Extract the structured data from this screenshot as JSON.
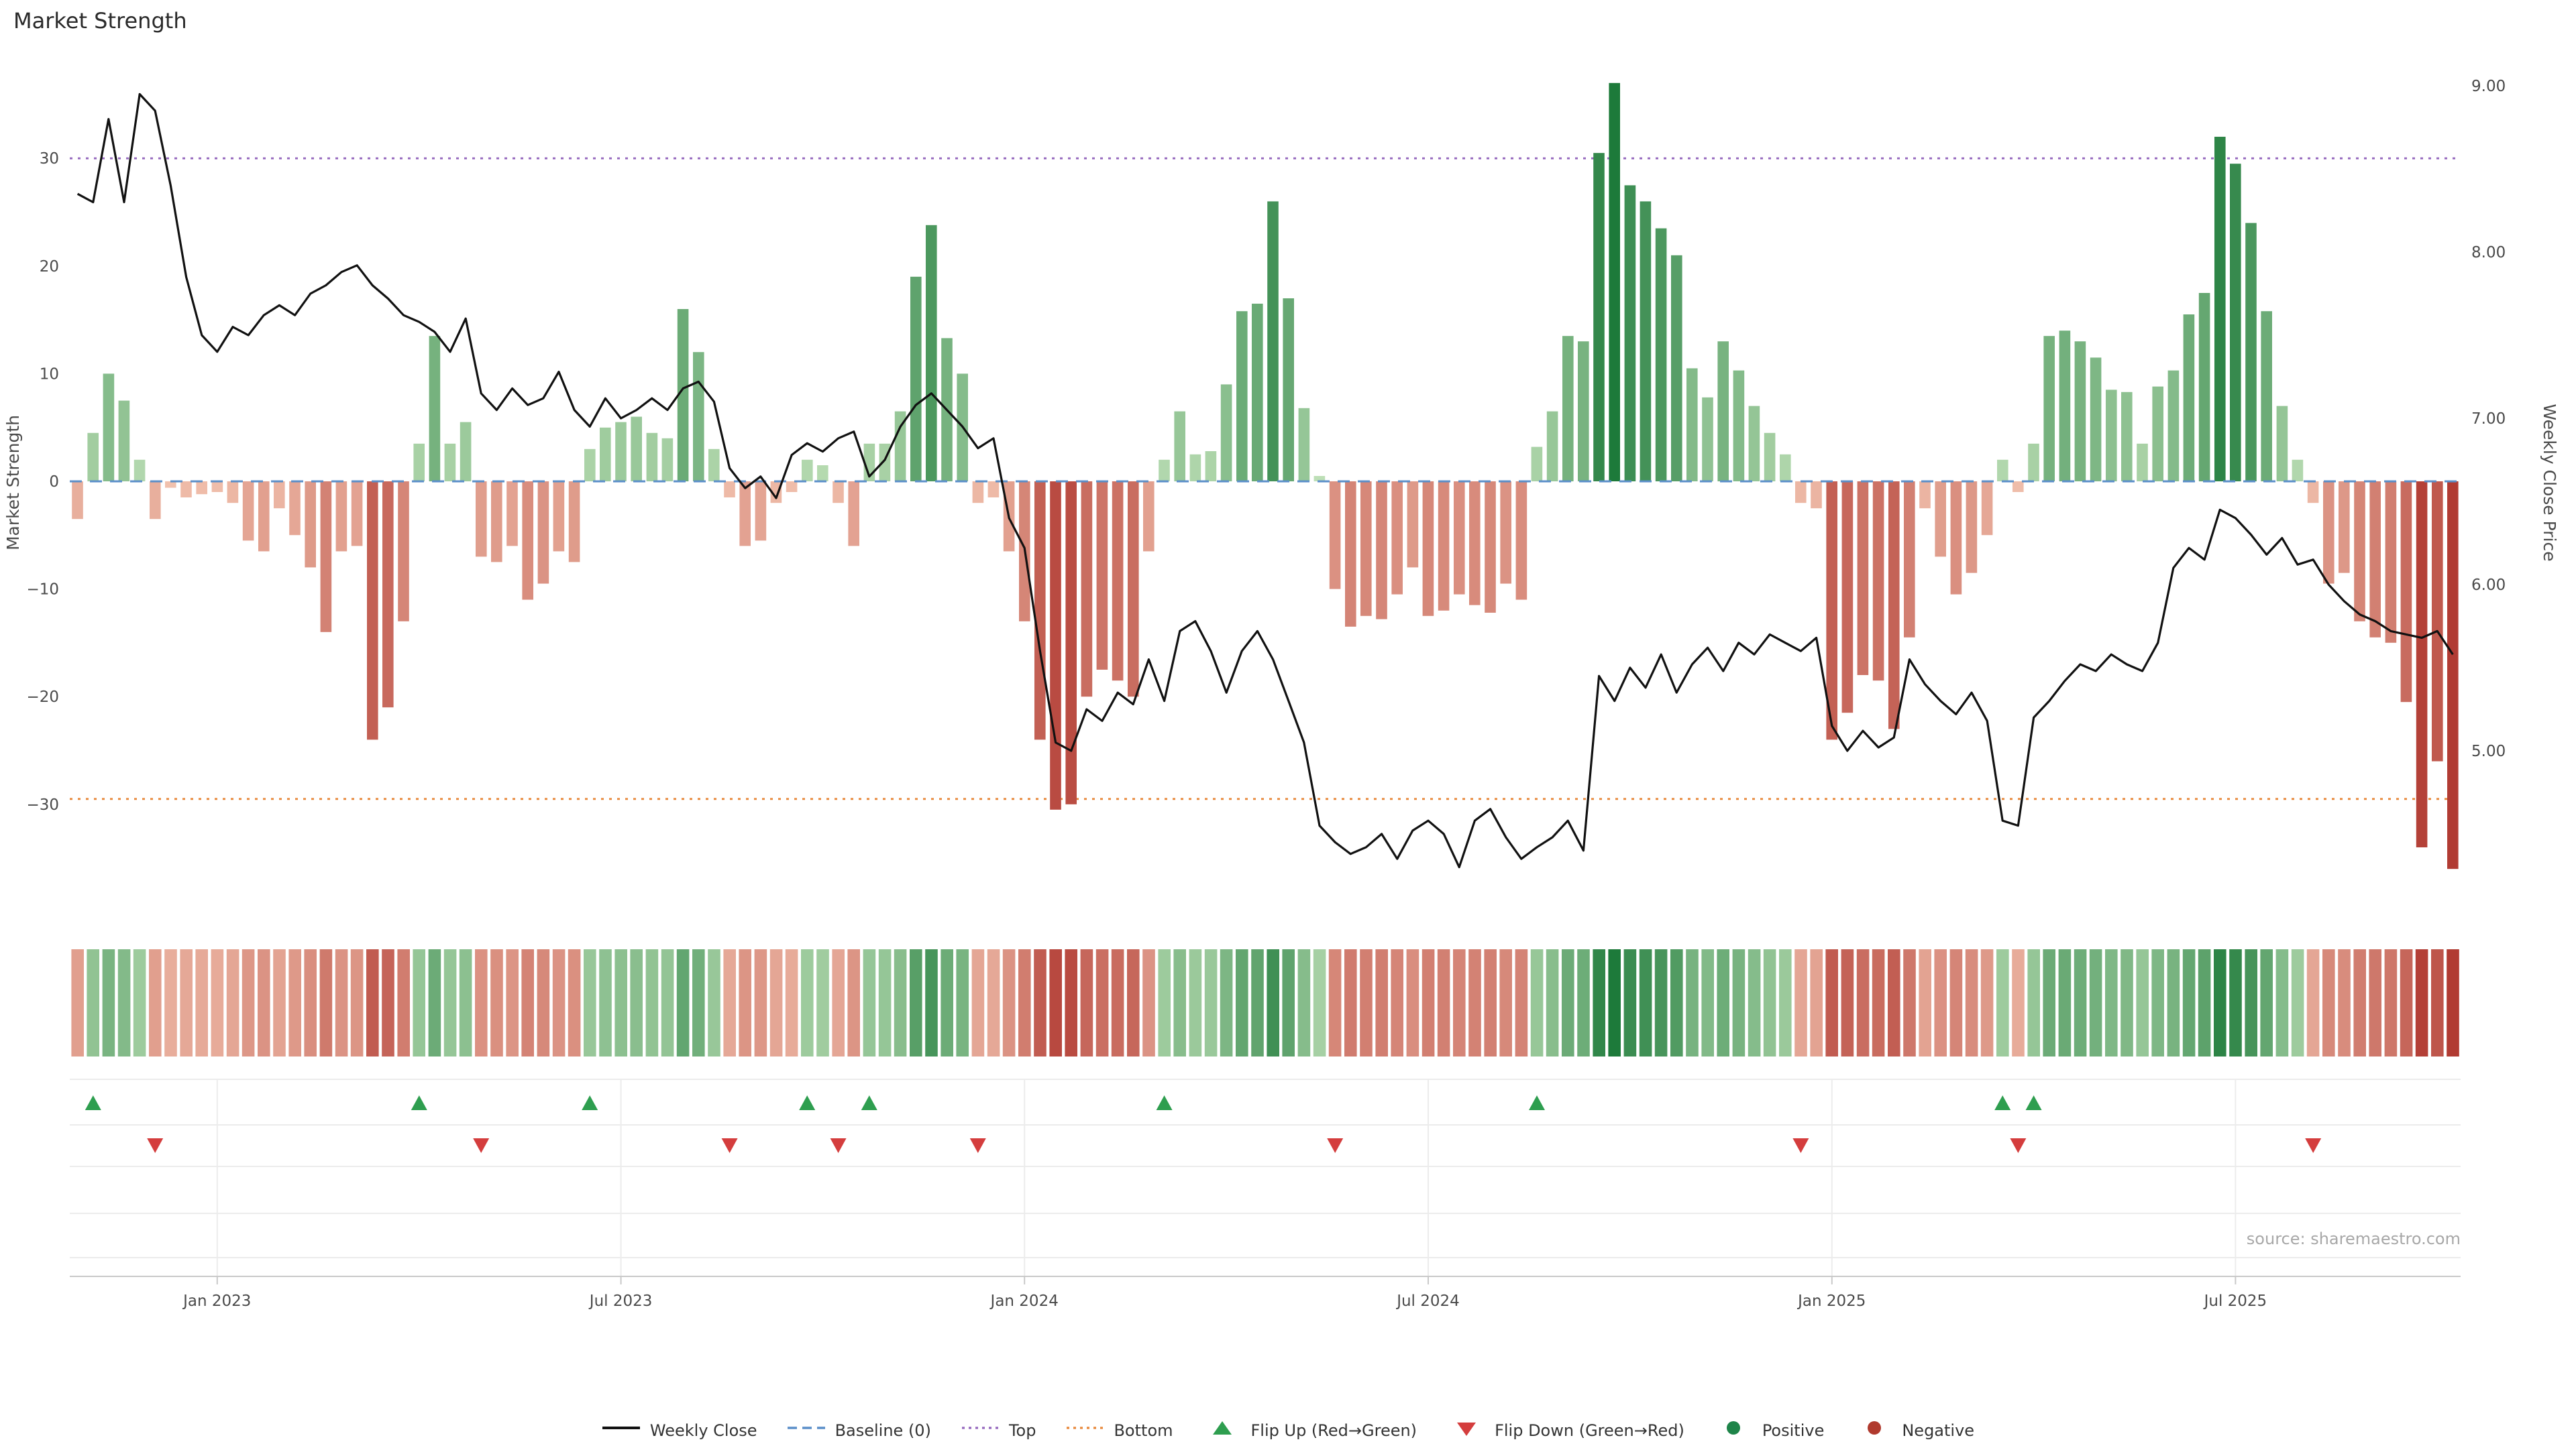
{
  "title": "Market Strength",
  "source": "source: sharemaestro.com",
  "legend": {
    "items": [
      {
        "name": "weekly-close",
        "label": "Weekly Close",
        "symbol": "line",
        "color": "#111111"
      },
      {
        "name": "baseline",
        "label": "Baseline (0)",
        "symbol": "dashed",
        "color": "#5b8fc9"
      },
      {
        "name": "top",
        "label": "Top",
        "symbol": "dotted",
        "color": "#9467bd"
      },
      {
        "name": "bottom",
        "label": "Bottom",
        "symbol": "dotted",
        "color": "#e8883a"
      },
      {
        "name": "flip-up",
        "label": "Flip Up (Red→Green)",
        "symbol": "triangle-up",
        "color": "#2e9e4f"
      },
      {
        "name": "flip-down",
        "label": "Flip Down (Green→Red)",
        "symbol": "triangle-down",
        "color": "#d43d3d"
      },
      {
        "name": "positive",
        "label": "Positive",
        "symbol": "circle",
        "color": "#1e8449"
      },
      {
        "name": "negative",
        "label": "Negative",
        "symbol": "circle",
        "color": "#b03a2e"
      }
    ]
  },
  "colors": {
    "pos_light": "#c4e3bb",
    "pos_dark": "#1d7a3a",
    "neg_light": "#f4c7b3",
    "neg_dark": "#b03830",
    "line": "#111111",
    "baseline": "#5b8fc9",
    "top": "#9467bd",
    "bottom": "#e8883a",
    "flip_up": "#2e9e4f",
    "flip_down": "#d43d3d",
    "grid": "#ececec",
    "axis_line": "#c9c9c9",
    "axis_text": "#4a4a4a",
    "source_text": "#a8a8a8"
  },
  "chart_data": {
    "type": "combo",
    "subtypes": [
      "bar",
      "line",
      "heatmap"
    ],
    "x_unit": "week",
    "n_points": 154,
    "left_axis": {
      "label": "Market Strength",
      "ticks": [
        30,
        20,
        10,
        0,
        -10,
        -20,
        -30
      ],
      "tick_labels": [
        "30",
        "20",
        "10",
        "0",
        "−10",
        "−20",
        "−30"
      ],
      "range": [
        -38,
        40
      ]
    },
    "right_axis": {
      "label": "Weekly Close Price",
      "ticks": [
        9,
        8,
        7,
        6,
        5
      ],
      "tick_labels": [
        "9.00",
        "8.00",
        "7.00",
        "6.00",
        "5.00"
      ],
      "range": [
        4.1,
        9.1
      ]
    },
    "x_ticks": [
      {
        "label": "Jan 2023",
        "week": 9
      },
      {
        "label": "Jul 2023",
        "week": 35
      },
      {
        "label": "Jan 2024",
        "week": 61
      },
      {
        "label": "Jul 2024",
        "week": 87
      },
      {
        "label": "Jan 2025",
        "week": 113
      },
      {
        "label": "Jul 2025",
        "week": 139
      }
    ],
    "reference_lines": {
      "baseline": 0,
      "top": 30,
      "bottom": -29.5
    },
    "series": [
      {
        "name": "Market Strength",
        "type": "bar",
        "axis": "left",
        "values": [
          -3.5,
          4.5,
          10,
          7.5,
          2,
          -3.5,
          -0.6,
          -1.5,
          -1.2,
          -1,
          -2,
          -5.5,
          -6.5,
          -2.5,
          -5,
          -8,
          -14,
          -6.5,
          -6,
          -24,
          -21,
          -13,
          3.5,
          13.5,
          3.5,
          5.5,
          -7,
          -7.5,
          -6,
          -11,
          -9.5,
          -6.5,
          -7.5,
          3,
          5,
          5.5,
          6,
          4.5,
          4,
          16,
          12,
          3,
          -1.5,
          -6,
          -5.5,
          -2,
          -1,
          2,
          1.5,
          -2,
          -6,
          3.5,
          3.5,
          6.5,
          19,
          23.8,
          13.3,
          10,
          -2,
          -1.5,
          -6.5,
          -13,
          -24,
          -30.5,
          -30,
          -20,
          -17.5,
          -18.5,
          -20,
          -6.5,
          2,
          6.5,
          2.5,
          2.8,
          9,
          15.8,
          16.5,
          26,
          17,
          6.8,
          0.5,
          -10,
          -13.5,
          -12.5,
          -12.8,
          -10.5,
          -8,
          -12.5,
          -12,
          -10.5,
          -11.5,
          -12.2,
          -9.5,
          -11,
          3.2,
          6.5,
          13.5,
          13,
          30.5,
          37,
          27.5,
          26,
          23.5,
          21,
          10.5,
          7.8,
          13,
          10.3,
          7,
          4.5,
          2.5,
          -2,
          -2.5,
          -24,
          -21.5,
          -18,
          -18.5,
          -23,
          -14.5,
          -2.5,
          -7,
          -10.5,
          -8.5,
          -5,
          2,
          -1,
          3.5,
          13.5,
          14,
          13,
          11.5,
          8.5,
          8.3,
          3.5,
          8.8,
          10.3,
          15.5,
          17.5,
          32,
          29.5,
          24,
          15.8,
          7,
          2,
          -2,
          -9.5,
          -8.5,
          -13,
          -14.5,
          -15,
          -20.5,
          -34,
          -26,
          -36
        ]
      },
      {
        "name": "Weekly Close",
        "type": "line",
        "axis": "right",
        "values": [
          8.35,
          8.3,
          8.8,
          8.3,
          8.95,
          8.85,
          8.4,
          7.85,
          7.5,
          7.4,
          7.55,
          7.5,
          7.62,
          7.68,
          7.62,
          7.75,
          7.8,
          7.88,
          7.92,
          7.8,
          7.72,
          7.62,
          7.58,
          7.52,
          7.4,
          7.6,
          7.15,
          7.05,
          7.18,
          7.08,
          7.12,
          7.28,
          7.05,
          6.95,
          7.12,
          7,
          7.05,
          7.12,
          7.05,
          7.18,
          7.22,
          7.1,
          6.7,
          6.58,
          6.65,
          6.52,
          6.78,
          6.85,
          6.8,
          6.88,
          6.92,
          6.65,
          6.75,
          6.95,
          7.08,
          7.15,
          7.05,
          6.95,
          6.82,
          6.88,
          6.4,
          6.22,
          5.6,
          5.05,
          5,
          5.25,
          5.18,
          5.35,
          5.28,
          5.55,
          5.3,
          5.72,
          5.78,
          5.6,
          5.35,
          5.6,
          5.72,
          5.55,
          5.3,
          5.05,
          4.55,
          4.45,
          4.38,
          4.42,
          4.5,
          4.35,
          4.52,
          4.58,
          4.5,
          4.3,
          4.58,
          4.65,
          4.48,
          4.35,
          4.42,
          4.48,
          4.58,
          4.4,
          5.45,
          5.3,
          5.5,
          5.38,
          5.58,
          5.35,
          5.52,
          5.62,
          5.48,
          5.65,
          5.58,
          5.7,
          5.65,
          5.6,
          5.68,
          5.15,
          5,
          5.12,
          5.02,
          5.08,
          5.55,
          5.4,
          5.3,
          5.22,
          5.35,
          5.18,
          4.58,
          4.55,
          5.2,
          5.3,
          5.42,
          5.52,
          5.48,
          5.58,
          5.52,
          5.48,
          5.65,
          6.1,
          6.22,
          6.15,
          6.45,
          6.4,
          6.3,
          6.18,
          6.28,
          6.12,
          6.15,
          6,
          5.9,
          5.82,
          5.78,
          5.72,
          5.7,
          5.68,
          5.72,
          5.58
        ]
      }
    ]
  }
}
